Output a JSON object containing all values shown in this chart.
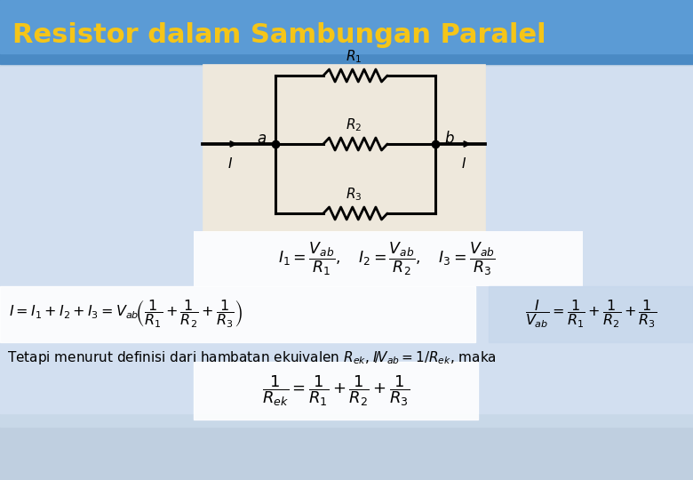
{
  "title": "Resistor dalam Sambungan Paralel",
  "title_color": "#F5C518",
  "title_bg_top": "#5B9BD5",
  "title_bg_bottom": "#4A8AC4",
  "bg_color": "#C5D8EC",
  "bg_mid": "#D0E2F0",
  "circuit_bg": "#F2F0EC",
  "formula1": "$I_1 = \\dfrac{V_{ab}}{R_1},\\quad I_2 = \\dfrac{V_{ab}}{R_2},\\quad I_3 = \\dfrac{V_{ab}}{R_3}$",
  "formula2": "$I = I_1 + I_2 + I_3 = V_{ab}\\!\\left(\\dfrac{1}{R_1} + \\dfrac{1}{R_2} + \\dfrac{1}{R_3}\\right)$",
  "formula3": "$\\dfrac{I}{V_{ab}} = \\dfrac{1}{R_1} + \\dfrac{1}{R_2} + \\dfrac{1}{R_3}$",
  "formula4": "Tetapi menurut definisi dari hambatan ekuivalen $R_{ek}$, $I\\!/\\!V_{ab} = 1/R_{ek}$, maka",
  "formula5": "$\\dfrac{1}{R_{ek}} = \\dfrac{1}{R_1} + \\dfrac{1}{R_2} + \\dfrac{1}{R_3}$",
  "figsize": [
    7.8,
    5.4
  ],
  "dpi": 100
}
